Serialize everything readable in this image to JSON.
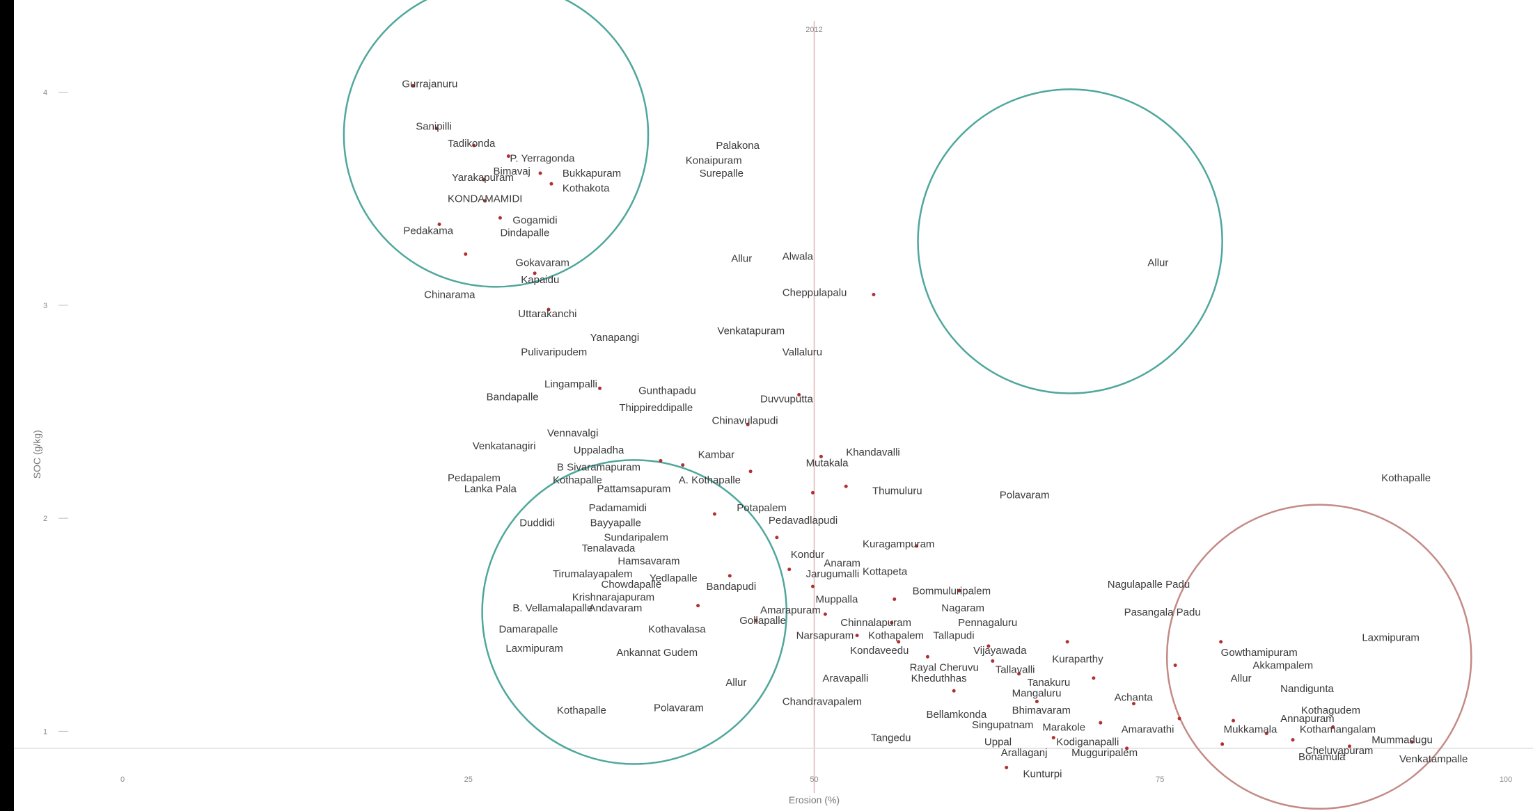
{
  "chart_data": {
    "type": "scatter",
    "xlabel": "Erosion (%)",
    "ylabel": "SOC (g/kg)",
    "top_label": "2012",
    "x_ticks": [
      "0",
      "25",
      "50",
      "75",
      "100"
    ],
    "y_ticks": [
      "4",
      "3",
      "2",
      "1"
    ],
    "xlim": [
      0,
      100
    ],
    "ylim": [
      0.75,
      4.25
    ],
    "colors": {
      "circle_teal": "#4fa79c",
      "circle_red": "#c48a86",
      "point": "#b03030",
      "ref_line_x": "#e0b4b4",
      "ref_line_y": "#e4e4e4",
      "text": "#333333"
    },
    "circles": [
      {
        "cx": 27,
        "cy": 3.8,
        "r": 11,
        "color": "teal"
      },
      {
        "cx": 68.5,
        "cy": 3.3,
        "r": 11,
        "color": "teal"
      },
      {
        "cx": 37,
        "cy": 1.56,
        "r": 11,
        "color": "teal"
      },
      {
        "cx": 86.5,
        "cy": 1.35,
        "r": 11,
        "color": "red"
      }
    ],
    "labels": [
      {
        "text": "Gurrajanuru",
        "x": 20.2,
        "y": 4.04
      },
      {
        "text": "Sanipilli",
        "x": 21.2,
        "y": 3.84
      },
      {
        "text": "Tadikonda",
        "x": 23.5,
        "y": 3.76
      },
      {
        "text": "P. Yerragonda",
        "x": 28,
        "y": 3.69
      },
      {
        "text": "Bimavaj",
        "x": 26.8,
        "y": 3.63
      },
      {
        "text": "Yarakapuram",
        "x": 23.8,
        "y": 3.6
      },
      {
        "text": "Bukkapuram",
        "x": 31.8,
        "y": 3.62
      },
      {
        "text": "Kothakota",
        "x": 31.8,
        "y": 3.55
      },
      {
        "text": "KONDAMAMIDI",
        "x": 23.5,
        "y": 3.5
      },
      {
        "text": "Gogamidi",
        "x": 28.2,
        "y": 3.4
      },
      {
        "text": "Pedakama",
        "x": 20.3,
        "y": 3.35
      },
      {
        "text": "Dindapalle",
        "x": 27.3,
        "y": 3.34
      },
      {
        "text": "Gokavaram",
        "x": 28.4,
        "y": 3.2
      },
      {
        "text": "Kapaidu",
        "x": 28.8,
        "y": 3.12
      },
      {
        "text": "Chinarama",
        "x": 21.8,
        "y": 3.05
      },
      {
        "text": "Uttarakanchi",
        "x": 28.6,
        "y": 2.96
      },
      {
        "text": "Palakona",
        "x": 42.9,
        "y": 3.75
      },
      {
        "text": "Konaipuram",
        "x": 40.7,
        "y": 3.68
      },
      {
        "text": "Surepalle",
        "x": 41.7,
        "y": 3.62
      },
      {
        "text": "Allur",
        "x": 44,
        "y": 3.22
      },
      {
        "text": "Alwala",
        "x": 47.7,
        "y": 3.23
      },
      {
        "text": "Allur",
        "x": 74.1,
        "y": 3.2
      },
      {
        "text": "Cheppulapalu",
        "x": 47.7,
        "y": 3.06
      },
      {
        "text": "Yanapangi",
        "x": 33.8,
        "y": 2.85
      },
      {
        "text": "Venkatapuram",
        "x": 43,
        "y": 2.88
      },
      {
        "text": "Pulivaripudem",
        "x": 28.8,
        "y": 2.78
      },
      {
        "text": "Vallaluru",
        "x": 47.7,
        "y": 2.78
      },
      {
        "text": "Lingampalli",
        "x": 30.5,
        "y": 2.63
      },
      {
        "text": "Gunthapadu",
        "x": 37.3,
        "y": 2.6
      },
      {
        "text": "Bandapalle",
        "x": 26.3,
        "y": 2.57
      },
      {
        "text": "Duvvuputta",
        "x": 46.1,
        "y": 2.56
      },
      {
        "text": "Thippireddipalle",
        "x": 35.9,
        "y": 2.52
      },
      {
        "text": "Chinavulapudi",
        "x": 42.6,
        "y": 2.46
      },
      {
        "text": "Vennavalgi",
        "x": 30.7,
        "y": 2.4
      },
      {
        "text": "Venkatanagiri",
        "x": 25.3,
        "y": 2.34
      },
      {
        "text": "Uppaladha",
        "x": 32.6,
        "y": 2.32
      },
      {
        "text": "Kambar",
        "x": 41.6,
        "y": 2.3
      },
      {
        "text": "Khandavalli",
        "x": 52.3,
        "y": 2.31
      },
      {
        "text": "Mutakala",
        "x": 49.4,
        "y": 2.26
      },
      {
        "text": "B Sivaramapuram",
        "x": 31.4,
        "y": 2.24
      },
      {
        "text": "Pedapalem",
        "x": 23.5,
        "y": 2.19
      },
      {
        "text": "Kothapalle",
        "x": 31.1,
        "y": 2.18
      },
      {
        "text": "A. Kothapalle",
        "x": 40.2,
        "y": 2.18
      },
      {
        "text": "Lanka Pala",
        "x": 24.7,
        "y": 2.14
      },
      {
        "text": "Pattamsapuram",
        "x": 34.3,
        "y": 2.14
      },
      {
        "text": "Thumuluru",
        "x": 54.2,
        "y": 2.13
      },
      {
        "text": "Polavaram",
        "x": 63.4,
        "y": 2.11
      },
      {
        "text": "Kothapalle",
        "x": 91,
        "y": 2.19
      },
      {
        "text": "Padamamidi",
        "x": 33.7,
        "y": 2.05
      },
      {
        "text": "Potapalem",
        "x": 44.4,
        "y": 2.05
      },
      {
        "text": "Duddidi",
        "x": 28.7,
        "y": 1.98
      },
      {
        "text": "Bayyapalle",
        "x": 33.8,
        "y": 1.98
      },
      {
        "text": "Pedavadlapudi",
        "x": 46.7,
        "y": 1.99
      },
      {
        "text": "Sundaripalem",
        "x": 34.8,
        "y": 1.91
      },
      {
        "text": "Tenalavada",
        "x": 33.2,
        "y": 1.86
      },
      {
        "text": "Kuragampuram",
        "x": 53.5,
        "y": 1.88
      },
      {
        "text": "Kondur",
        "x": 48.3,
        "y": 1.83
      },
      {
        "text": "Anaram",
        "x": 50.7,
        "y": 1.79
      },
      {
        "text": "Hamsavaram",
        "x": 35.8,
        "y": 1.8
      },
      {
        "text": "Jarugumalli",
        "x": 49.4,
        "y": 1.74
      },
      {
        "text": "Tirumalayapalem",
        "x": 31.1,
        "y": 1.74
      },
      {
        "text": "Chowdapalle",
        "x": 34.6,
        "y": 1.69
      },
      {
        "text": "Yedlapalle",
        "x": 38.1,
        "y": 1.72
      },
      {
        "text": "Bandapudi",
        "x": 42.2,
        "y": 1.68
      },
      {
        "text": "Kottapeta",
        "x": 53.5,
        "y": 1.75
      },
      {
        "text": "Bommuluripalem",
        "x": 57.1,
        "y": 1.66
      },
      {
        "text": "Nagulapalle Padu",
        "x": 71.2,
        "y": 1.69
      },
      {
        "text": "Krishnarajapuram",
        "x": 32.5,
        "y": 1.63
      },
      {
        "text": "Muppalla",
        "x": 50.1,
        "y": 1.62
      },
      {
        "text": "B. Vellamalapalle",
        "x": 28.2,
        "y": 1.58
      },
      {
        "text": "Andavaram",
        "x": 33.7,
        "y": 1.58
      },
      {
        "text": "Nagaram",
        "x": 59.2,
        "y": 1.58
      },
      {
        "text": "Pasangala Padu",
        "x": 72.4,
        "y": 1.56
      },
      {
        "text": "Amarapuram",
        "x": 46.1,
        "y": 1.57
      },
      {
        "text": "Chinnalapuram",
        "x": 51.9,
        "y": 1.51
      },
      {
        "text": "Pennagaluru",
        "x": 60.4,
        "y": 1.51
      },
      {
        "text": "Gollapalle",
        "x": 44.6,
        "y": 1.52
      },
      {
        "text": "Damarapalle",
        "x": 27.2,
        "y": 1.48
      },
      {
        "text": "Kothavalasa",
        "x": 38,
        "y": 1.48
      },
      {
        "text": "Narsapuram",
        "x": 48.7,
        "y": 1.45
      },
      {
        "text": "Kothapalem",
        "x": 53.9,
        "y": 1.45
      },
      {
        "text": "Tallapudi",
        "x": 58.6,
        "y": 1.45
      },
      {
        "text": "Laxmipuram",
        "x": 89.6,
        "y": 1.44
      },
      {
        "text": "Laxmipuram",
        "x": 27.7,
        "y": 1.39
      },
      {
        "text": "Ankannat Gudem",
        "x": 35.7,
        "y": 1.37
      },
      {
        "text": "Kondaveedu",
        "x": 52.6,
        "y": 1.38
      },
      {
        "text": "Vijayawada",
        "x": 61.5,
        "y": 1.38
      },
      {
        "text": "Gowthamipuram",
        "x": 79.4,
        "y": 1.37
      },
      {
        "text": "Kuraparthy",
        "x": 67.2,
        "y": 1.34
      },
      {
        "text": "Akkampalem",
        "x": 81.7,
        "y": 1.31
      },
      {
        "text": "Rayal Cheruvu",
        "x": 56.9,
        "y": 1.3
      },
      {
        "text": "Tallavalli",
        "x": 63.1,
        "y": 1.29
      },
      {
        "text": "Allur",
        "x": 43.6,
        "y": 1.23
      },
      {
        "text": "Aravapalli",
        "x": 50.6,
        "y": 1.25
      },
      {
        "text": "Kheduthhas",
        "x": 57,
        "y": 1.25
      },
      {
        "text": "Nandigunta",
        "x": 83.7,
        "y": 1.2
      },
      {
        "text": "Allur",
        "x": 80.1,
        "y": 1.25
      },
      {
        "text": "Tanakuru",
        "x": 65.4,
        "y": 1.23
      },
      {
        "text": "Mangaluru",
        "x": 64.3,
        "y": 1.18
      },
      {
        "text": "Achanta",
        "x": 71.7,
        "y": 1.16
      },
      {
        "text": "Chandravapalem",
        "x": 47.7,
        "y": 1.14
      },
      {
        "text": "Kothapalle",
        "x": 31.4,
        "y": 1.1
      },
      {
        "text": "Polavaram",
        "x": 38.4,
        "y": 1.11
      },
      {
        "text": "Bellamkonda",
        "x": 58.1,
        "y": 1.08
      },
      {
        "text": "Bhimavaram",
        "x": 64.3,
        "y": 1.1
      },
      {
        "text": "Kothagudem",
        "x": 85.2,
        "y": 1.1
      },
      {
        "text": "Annapuram",
        "x": 83.7,
        "y": 1.06
      },
      {
        "text": "Singupatnam",
        "x": 61.4,
        "y": 1.03
      },
      {
        "text": "Marakole",
        "x": 66.5,
        "y": 1.02
      },
      {
        "text": "Amaravathi",
        "x": 72.2,
        "y": 1.01
      },
      {
        "text": "Mukkamala",
        "x": 79.6,
        "y": 1.01
      },
      {
        "text": "Kothamangalam",
        "x": 85.1,
        "y": 1.01
      },
      {
        "text": "Tangedu",
        "x": 54.1,
        "y": 0.97
      },
      {
        "text": "Mummadugu",
        "x": 90.3,
        "y": 0.96
      },
      {
        "text": "Uppal",
        "x": 62.3,
        "y": 0.95
      },
      {
        "text": "Kodiganapalli",
        "x": 67.5,
        "y": 0.95
      },
      {
        "text": "Cheluvapuram",
        "x": 85.5,
        "y": 0.91
      },
      {
        "text": "Arallaganj",
        "x": 63.5,
        "y": 0.9
      },
      {
        "text": "Mugguripalem",
        "x": 68.6,
        "y": 0.9
      },
      {
        "text": "Bonamula",
        "x": 85,
        "y": 0.88
      },
      {
        "text": "Venkatampalle",
        "x": 92.3,
        "y": 0.87
      },
      {
        "text": "Kunturpi",
        "x": 65.1,
        "y": 0.8
      }
    ],
    "points": [
      {
        "x": 21,
        "y": 4.03
      },
      {
        "x": 22.7,
        "y": 3.83
      },
      {
        "x": 25.4,
        "y": 3.75
      },
      {
        "x": 27.9,
        "y": 3.7
      },
      {
        "x": 30.2,
        "y": 3.62
      },
      {
        "x": 31,
        "y": 3.57
      },
      {
        "x": 26.1,
        "y": 3.59
      },
      {
        "x": 26.2,
        "y": 3.49
      },
      {
        "x": 27.3,
        "y": 3.41
      },
      {
        "x": 22.9,
        "y": 3.38
      },
      {
        "x": 24.8,
        "y": 3.24
      },
      {
        "x": 29.8,
        "y": 3.15
      },
      {
        "x": 30.8,
        "y": 2.98
      },
      {
        "x": 54.3,
        "y": 3.05
      },
      {
        "x": 48.9,
        "y": 2.58
      },
      {
        "x": 45.2,
        "y": 2.44
      },
      {
        "x": 34.5,
        "y": 2.61
      },
      {
        "x": 38.9,
        "y": 2.27
      },
      {
        "x": 40.5,
        "y": 2.25
      },
      {
        "x": 45.4,
        "y": 2.22
      },
      {
        "x": 50.5,
        "y": 2.29
      },
      {
        "x": 52.3,
        "y": 2.15
      },
      {
        "x": 49.9,
        "y": 2.12
      },
      {
        "x": 42.8,
        "y": 2.02
      },
      {
        "x": 57.4,
        "y": 1.87
      },
      {
        "x": 48.2,
        "y": 1.76
      },
      {
        "x": 49.9,
        "y": 1.68
      },
      {
        "x": 43.9,
        "y": 1.73
      },
      {
        "x": 55.8,
        "y": 1.62
      },
      {
        "x": 60.5,
        "y": 1.66
      },
      {
        "x": 50.8,
        "y": 1.55
      },
      {
        "x": 55.6,
        "y": 1.51
      },
      {
        "x": 62.6,
        "y": 1.4
      },
      {
        "x": 58.2,
        "y": 1.35
      },
      {
        "x": 62.9,
        "y": 1.33
      },
      {
        "x": 68.3,
        "y": 1.42
      },
      {
        "x": 64.8,
        "y": 1.27
      },
      {
        "x": 70.2,
        "y": 1.25
      },
      {
        "x": 60.1,
        "y": 1.19
      },
      {
        "x": 66.1,
        "y": 1.14
      },
      {
        "x": 73.1,
        "y": 1.13
      },
      {
        "x": 70.7,
        "y": 1.04
      },
      {
        "x": 76.4,
        "y": 1.06
      },
      {
        "x": 80.3,
        "y": 1.05
      },
      {
        "x": 79.5,
        "y": 0.94
      },
      {
        "x": 84.6,
        "y": 0.96
      },
      {
        "x": 82.7,
        "y": 0.99
      },
      {
        "x": 87.5,
        "y": 1.02
      },
      {
        "x": 88.7,
        "y": 0.93
      },
      {
        "x": 93.2,
        "y": 0.95
      },
      {
        "x": 76.1,
        "y": 1.31
      },
      {
        "x": 79.4,
        "y": 1.42
      },
      {
        "x": 63.9,
        "y": 0.83
      },
      {
        "x": 67.3,
        "y": 0.97
      },
      {
        "x": 72.6,
        "y": 0.92
      },
      {
        "x": 47.3,
        "y": 1.91
      },
      {
        "x": 41.6,
        "y": 1.59
      },
      {
        "x": 45.8,
        "y": 1.52
      },
      {
        "x": 53.1,
        "y": 1.45
      },
      {
        "x": 56.1,
        "y": 1.42
      }
    ]
  }
}
